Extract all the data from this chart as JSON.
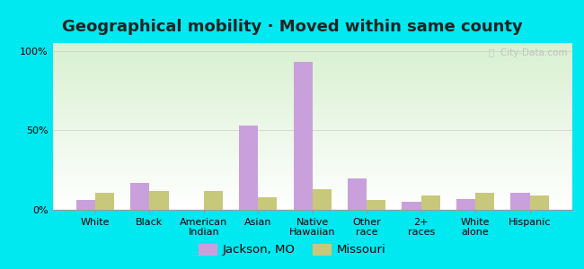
{
  "title": "Geographical mobility · Moved within same county",
  "categories": [
    "White",
    "Black",
    "American\nIndian",
    "Asian",
    "Native\nHawaiian",
    "Other\nrace",
    "2+\nraces",
    "White\nalone",
    "Hispanic"
  ],
  "jackson_values": [
    6,
    17,
    0,
    53,
    93,
    20,
    5,
    7,
    11
  ],
  "missouri_values": [
    11,
    12,
    12,
    8,
    13,
    6,
    9,
    11,
    9
  ],
  "jackson_color": "#c9a0dc",
  "missouri_color": "#c8c87a",
  "background_outer": "#00e8f0",
  "ylabel_ticks": [
    "0%",
    "50%",
    "100%"
  ],
  "ytick_vals": [
    0,
    50,
    100
  ],
  "ylim": [
    0,
    105
  ],
  "bar_width": 0.35,
  "legend_jackson": "Jackson, MO",
  "legend_missouri": "Missouri",
  "watermark": "ⓘ  City-Data.com",
  "title_fontsize": 13,
  "tick_fontsize": 8,
  "legend_fontsize": 9.5
}
